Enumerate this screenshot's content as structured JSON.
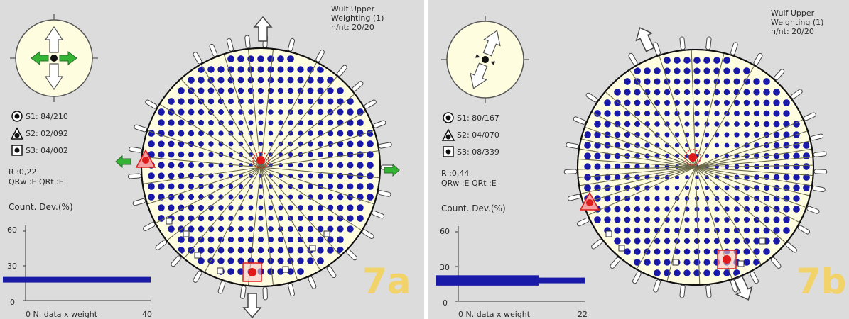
{
  "panels": [
    {
      "id": "a",
      "header": [
        "Wulf Upper",
        "Weighting (1)",
        "n/nt: 20/20"
      ],
      "stress": [
        {
          "symbol": "circle",
          "label": "S1: 84/210"
        },
        {
          "symbol": "triangle",
          "label": "S2: 02/092"
        },
        {
          "symbol": "square",
          "label": "S3: 04/002"
        }
      ],
      "ratio": "R :0,22",
      "quality": "QRw :E  QRt :E",
      "count_label": "Count. Dev.(%)",
      "y_ticks": [
        "60",
        "30",
        "0"
      ],
      "x_axis_label": "0   N. data x weight",
      "x_max_label": "40",
      "panel_label": "7a",
      "histogram": [
        {
          "from": 0,
          "to": 40,
          "percent": 18
        }
      ],
      "x_max": 40
    },
    {
      "id": "b",
      "header": [
        "Wulf Upper",
        "Weighting (1)",
        "n/nt: 20/20"
      ],
      "stress": [
        {
          "symbol": "circle",
          "label": "S1: 80/167"
        },
        {
          "symbol": "triangle",
          "label": "S2: 04/070"
        },
        {
          "symbol": "square",
          "label": "S3: 08/339"
        }
      ],
      "ratio": "R :0,44",
      "quality": "QRw :E  QRt :E",
      "count_label": "Count. Dev.(%)",
      "y_ticks": [
        "60",
        "30",
        "0"
      ],
      "x_axis_label": "0   N. data x weight",
      "x_max_label": "22",
      "panel_label": "7b",
      "histogram": [
        {
          "from": 0,
          "to": 14,
          "percent": 20
        },
        {
          "from": 0,
          "to": 22,
          "percent": 18
        },
        {
          "from": 0,
          "to": 14,
          "percent": 16
        }
      ],
      "x_max": 22
    }
  ],
  "colors": {
    "background": "#dcdcdc",
    "net_fill": "#fffde0",
    "dots": "#1a1aa8",
    "stress_marker": "#e01b1b",
    "green_arrow": "#33b533",
    "panel_label": "#f4d35e"
  }
}
